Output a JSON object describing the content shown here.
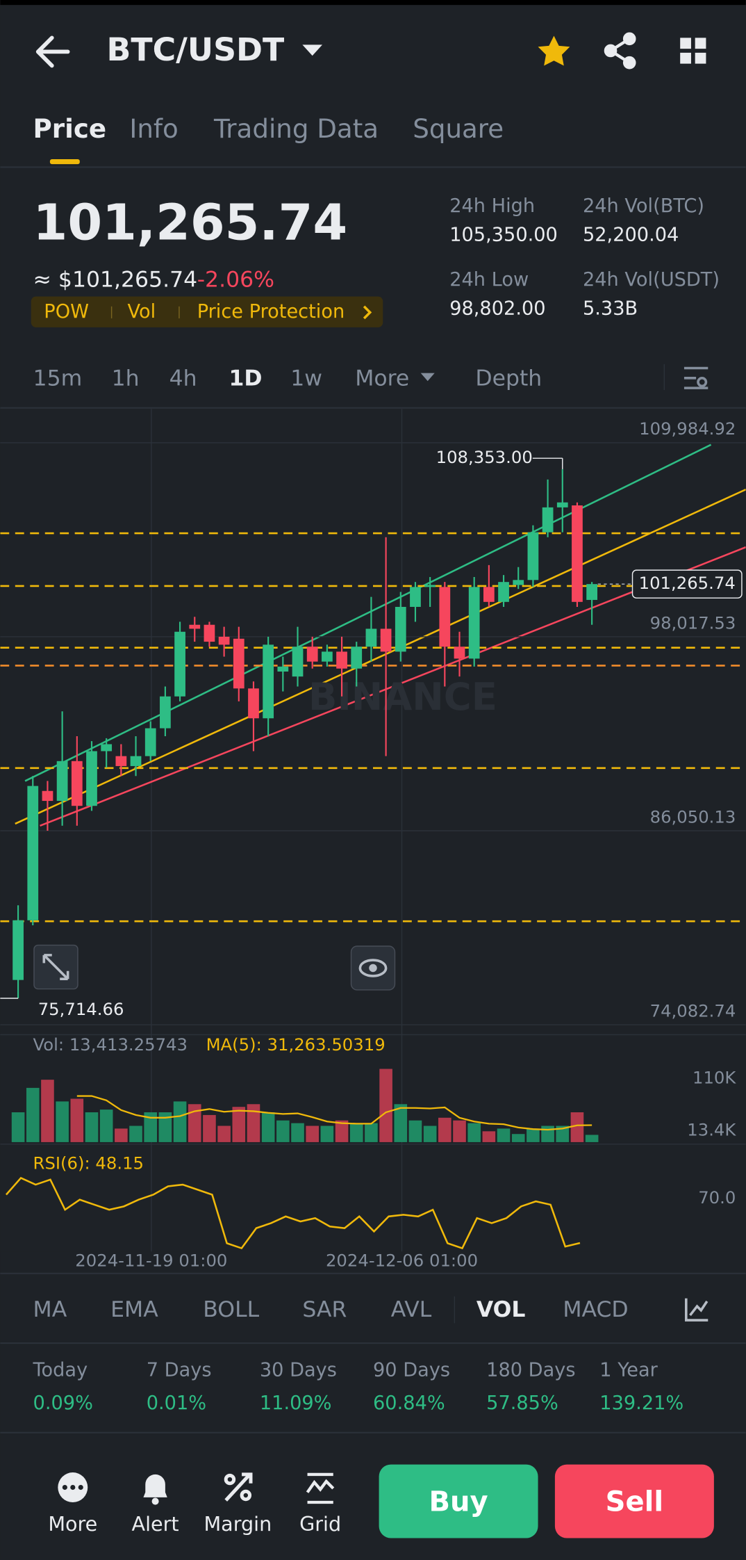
{
  "header": {
    "pair": "BTC/USDT"
  },
  "tabs": [
    "Price",
    "Info",
    "Trading Data",
    "Square"
  ],
  "price": {
    "last": "101,265.74",
    "approx": "≈ $101,265.74",
    "change": "-2.06%",
    "tags": [
      "POW",
      "Vol",
      "Price Protection"
    ]
  },
  "stats": [
    {
      "label": "24h High",
      "value": "105,350.00"
    },
    {
      "label": "24h Vol(BTC)",
      "value": "52,200.04"
    },
    {
      "label": "24h Low",
      "value": "98,802.00"
    },
    {
      "label": "24h Vol(USDT)",
      "value": "5.33B"
    }
  ],
  "intervals": [
    "15m",
    "1h",
    "4h",
    "1D",
    "1w",
    "More",
    "Depth"
  ],
  "chart_data": {
    "type": "candlestick",
    "watermark": "BINANCE",
    "open": [
      76845,
      80527,
      88505,
      87891,
      90346,
      87584,
      90960,
      90653,
      90039,
      90653,
      92372,
      94336,
      98755,
      98755,
      98018,
      97895,
      94827,
      92986,
      95870,
      95563,
      97404,
      96484,
      97097,
      96054,
      97404,
      98509,
      97097,
      99859,
      101086,
      101086,
      97404,
      96668,
      101086,
      100166,
      101210,
      101517,
      104462,
      105996,
      106119,
      100289
    ],
    "high": [
      81448,
      89426,
      89119,
      93415,
      91881,
      91574,
      91757,
      91390,
      91881,
      92802,
      94950,
      98939,
      99245,
      98939,
      98632,
      98632,
      95257,
      98018,
      96790,
      98632,
      98018,
      97527,
      98018,
      97711,
      100473,
      104155,
      100780,
      101394,
      101700,
      101394,
      98325,
      101700,
      102437,
      101823,
      102314,
      104891,
      107714,
      108353,
      106303,
      101394
    ],
    "low": [
      75714.66,
      80220,
      86051,
      86358,
      86358,
      87277,
      89941,
      89426,
      89426,
      90346,
      91881,
      94029,
      97711,
      97404,
      96790,
      94029,
      90960,
      91881,
      94643,
      94950,
      96054,
      96177,
      94336,
      94950,
      96484,
      90653,
      96484,
      98939,
      99859,
      94950,
      95563,
      96177,
      99859,
      99859,
      100964,
      101086,
      104155,
      104462,
      99859,
      98755
    ],
    "close": [
      80527,
      88812,
      87891,
      90346,
      87584,
      90960,
      91390,
      90039,
      90653,
      92372,
      94336,
      98325,
      98509,
      97711,
      97527,
      94827,
      92986,
      97527,
      96177,
      97404,
      96484,
      97097,
      96054,
      97404,
      98509,
      97097,
      99859,
      101086,
      101210,
      97404,
      96668,
      101086,
      100166,
      101394,
      101517,
      104462,
      105996,
      106303,
      100166,
      101265.74
    ],
    "colors": {
      "up": "#2ebd85",
      "down": "#f6465d"
    },
    "ylim": [
      74082.74,
      109984.92
    ],
    "yticks": [
      {
        "value": 74082.74,
        "label": "74,082.74"
      },
      {
        "value": 86050.13,
        "label": "86,050.13"
      },
      {
        "value": 98017.53,
        "label": "98,017.53"
      },
      {
        "value": 109984.92,
        "label": "109,984.92"
      }
    ],
    "last_label": "101,265.74",
    "annotations": [
      {
        "value": 108353,
        "label": "108,353.00"
      },
      {
        "value": 75714.66,
        "label": "75,714.66"
      }
    ],
    "x_labels": [
      "2024-11-19 01:00",
      "2024-12-06 01:00"
    ],
    "volume": {
      "label": "Vol: 13,413.25743",
      "ma_label": "MA(5): 31,263.50319",
      "values": [
        55000,
        100000,
        115000,
        75000,
        80000,
        55000,
        60000,
        25000,
        30000,
        55000,
        55000,
        75000,
        70000,
        50000,
        30000,
        65000,
        70000,
        55000,
        40000,
        35000,
        30000,
        30000,
        40000,
        35000,
        35000,
        135000,
        70000,
        40000,
        30000,
        45000,
        40000,
        35000,
        20000,
        25000,
        15000,
        25000,
        30000,
        30000,
        55000,
        13413.25743
      ],
      "ma5": [
        null,
        null,
        null,
        null,
        85000,
        85000,
        77000,
        59000,
        50000,
        45000,
        45000,
        48000,
        57000,
        61000,
        56000,
        58000,
        57000,
        54000,
        52000,
        53000,
        46000,
        38000,
        35000,
        34000,
        34000,
        55000,
        63000,
        63000,
        62000,
        64000,
        45000,
        38000,
        34000,
        33000,
        27000,
        24000,
        23000,
        25000,
        31000,
        31263.50319
      ],
      "ma_color": "#f0b90b",
      "ylim": [
        0,
        198000
      ],
      "yticks": [
        {
          "value": 110000,
          "label": "110K"
        },
        {
          "value": 13400,
          "label": "13.4K"
        }
      ]
    },
    "rsi": {
      "label": "RSI(6): 48.15",
      "values": [
        77,
        87,
        83,
        86,
        68,
        74,
        71,
        68,
        70,
        74,
        77,
        82,
        83,
        80,
        77,
        48,
        45,
        57,
        60,
        64,
        61,
        63,
        58,
        57,
        64,
        55,
        64,
        65,
        64,
        68,
        48,
        45,
        63,
        60,
        63,
        70,
        73,
        71,
        46,
        48.15
      ],
      "color": "#f0b90b",
      "ylim": [
        43,
        106
      ],
      "yticks": [
        {
          "value": 70,
          "label": "70.0"
        }
      ]
    }
  },
  "indicators": [
    "MA",
    "EMA",
    "BOLL",
    "SAR",
    "AVL",
    "VOL",
    "MACD"
  ],
  "performance": [
    {
      "period": "Today",
      "value": "0.09%"
    },
    {
      "period": "7 Days",
      "value": "0.01%"
    },
    {
      "period": "30 Days",
      "value": "11.09%"
    },
    {
      "period": "90 Days",
      "value": "60.84%"
    },
    {
      "period": "180 Days",
      "value": "57.85%"
    },
    {
      "period": "1 Year",
      "value": "139.21%"
    }
  ],
  "actions": [
    "More",
    "Alert",
    "Margin",
    "Grid"
  ],
  "buy": "Buy",
  "sell": "Sell"
}
